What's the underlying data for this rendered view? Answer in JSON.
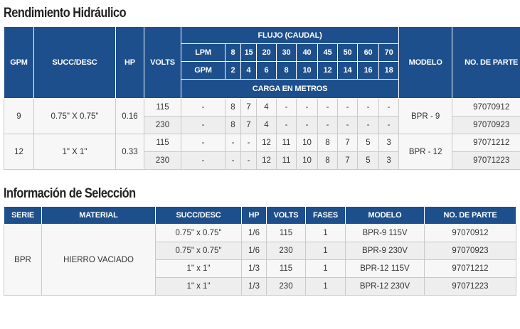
{
  "section1": {
    "title": "Rendimiento Hidráulico",
    "headers": {
      "gpm": "GPM",
      "succ_desc": "SUCC/DESC",
      "hp": "HP",
      "volts": "VOLTS",
      "flujo": "FLUJO (CAUDAL)",
      "lpm": "LPM",
      "gpm_sub": "GPM",
      "carga": "CARGA EN METROS",
      "modelo": "MODELO",
      "parte": "NO. DE PARTE"
    },
    "lpm_values": [
      "8",
      "15",
      "20",
      "30",
      "40",
      "45",
      "50",
      "60",
      "70"
    ],
    "gpm_values": [
      "2",
      "4",
      "6",
      "8",
      "10",
      "12",
      "14",
      "16",
      "18"
    ],
    "groups": [
      {
        "gpm": "9",
        "succ": "0.75\" X 0.75\"",
        "hp": "0.16",
        "modelo": "BPR - 9",
        "rows": [
          {
            "volts": "115",
            "dash": "-",
            "vals": [
              "8",
              "7",
              "4",
              "-",
              "-",
              "-",
              "-",
              "-",
              "-"
            ],
            "parte": "97070912"
          },
          {
            "volts": "230",
            "dash": "-",
            "vals": [
              "8",
              "7",
              "4",
              "-",
              "-",
              "-",
              "-",
              "-",
              "-"
            ],
            "parte": "97070923"
          }
        ]
      },
      {
        "gpm": "12",
        "succ": "1\" X 1\"",
        "hp": "0.33",
        "modelo": "BPR - 12",
        "rows": [
          {
            "volts": "115",
            "dash": "-",
            "vals": [
              "-",
              "-",
              "12",
              "11",
              "10",
              "8",
              "7",
              "5",
              "3"
            ],
            "parte": "97071212"
          },
          {
            "volts": "230",
            "dash": "-",
            "vals": [
              "-",
              "-",
              "12",
              "11",
              "10",
              "8",
              "7",
              "5",
              "3"
            ],
            "parte": "97071223"
          }
        ]
      }
    ]
  },
  "section2": {
    "title": "Información de Selección",
    "headers": {
      "serie": "SERIE",
      "material": "MATERIAL",
      "succ_desc": "SUCC/DESC",
      "hp": "HP",
      "volts": "VOLTS",
      "fases": "FASES",
      "modelo": "MODELO",
      "parte": "NO. DE PARTE"
    },
    "serie": "BPR",
    "material": "HIERRO VACIADO",
    "rows": [
      {
        "succ": "0.75\" x 0.75\"",
        "hp": "1/6",
        "volts": "115",
        "fases": "1",
        "modelo": "BPR-9 115V",
        "parte": "97070912"
      },
      {
        "succ": "0.75\" x 0.75\"",
        "hp": "1/6",
        "volts": "230",
        "fases": "1",
        "modelo": "BPR-9 230V",
        "parte": "97070923"
      },
      {
        "succ": "1\" x 1\"",
        "hp": "1/3",
        "volts": "115",
        "fases": "1",
        "modelo": "BPR-12 115V",
        "parte": "97071212"
      },
      {
        "succ": "1\" x 1\"",
        "hp": "1/3",
        "volts": "230",
        "fases": "1",
        "modelo": "BPR-12 230V",
        "parte": "97071223"
      }
    ]
  },
  "colors": {
    "header_bg": "#1d4f8c",
    "header_text": "#ffffff",
    "row_light": "#f7f7f7",
    "row_alt": "#eeeeee"
  }
}
